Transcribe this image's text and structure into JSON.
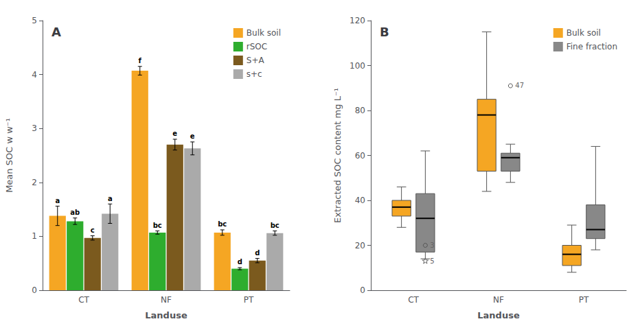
{
  "chart_data": [
    {
      "type": "bar",
      "title": "A",
      "categories": [
        "CT",
        "NF",
        "PT"
      ],
      "series": [
        {
          "name": "Bulk soil",
          "color": "#F5A623",
          "values": [
            1.38,
            4.07,
            1.07
          ],
          "errors": [
            0.18,
            0.08,
            0.05
          ],
          "annotations": [
            "a",
            "f",
            "bc"
          ]
        },
        {
          "name": "rSOC",
          "color": "#2EAD2E",
          "values": [
            1.28,
            1.07,
            0.4
          ],
          "errors": [
            0.06,
            0.03,
            0.02
          ],
          "annotations": [
            "ab",
            "bc",
            "d"
          ]
        },
        {
          "name": "S+A",
          "color": "#7B5A1E",
          "values": [
            0.97,
            2.7,
            0.55
          ],
          "errors": [
            0.04,
            0.1,
            0.04
          ],
          "annotations": [
            "c",
            "e",
            "d"
          ]
        },
        {
          "name": "s+c",
          "color": "#AAAAAA",
          "values": [
            1.42,
            2.63,
            1.06
          ],
          "errors": [
            0.18,
            0.12,
            0.04
          ],
          "annotations": [
            "a",
            "e",
            "bc"
          ]
        }
      ],
      "xlabel": "Landuse",
      "ylabel": "Mean SOC w w⁻¹",
      "ylim": [
        0,
        5
      ],
      "yticks": [
        0,
        1,
        2,
        3,
        4,
        5
      ],
      "grid": false,
      "legend": "upper right"
    },
    {
      "type": "boxplot",
      "title": "B",
      "categories": [
        "CT",
        "NF",
        "PT"
      ],
      "series": [
        {
          "name": "Bulk soil",
          "color": "#F5A623",
          "boxes": [
            {
              "q1": 33,
              "median": 37,
              "q3": 40,
              "whislo": 28,
              "whishi": 46,
              "fliers": []
            },
            {
              "q1": 53,
              "median": 78,
              "q3": 85,
              "whislo": 44,
              "whishi": 115,
              "fliers": []
            },
            {
              "q1": 11,
              "median": 16,
              "q3": 20,
              "whislo": 8,
              "whishi": 29,
              "fliers": []
            }
          ]
        },
        {
          "name": "Fine fraction",
          "color": "#888888",
          "boxes": [
            {
              "q1": 17,
              "median": 32,
              "q3": 43,
              "whislo": 14,
              "whishi": 62,
              "fliers": [
                20,
                13
              ],
              "flier_labels": [
                "3",
                "5"
              ],
              "flier_markers": [
                "circle",
                "star"
              ]
            },
            {
              "q1": 53,
              "median": 59,
              "q3": 61,
              "whislo": 48,
              "whishi": 65,
              "fliers": [
                91
              ],
              "flier_labels": [
                "47"
              ],
              "flier_markers": [
                "circle"
              ]
            },
            {
              "q1": 23,
              "median": 27,
              "q3": 38,
              "whislo": 18,
              "whishi": 64,
              "fliers": []
            }
          ]
        }
      ],
      "xlabel": "Landuse",
      "ylabel": "Extracted SOC content mg L⁻¹",
      "ylim": [
        0,
        120
      ],
      "yticks": [
        0,
        20,
        40,
        60,
        80,
        100,
        120
      ],
      "grid": false,
      "legend": "upper right"
    }
  ]
}
